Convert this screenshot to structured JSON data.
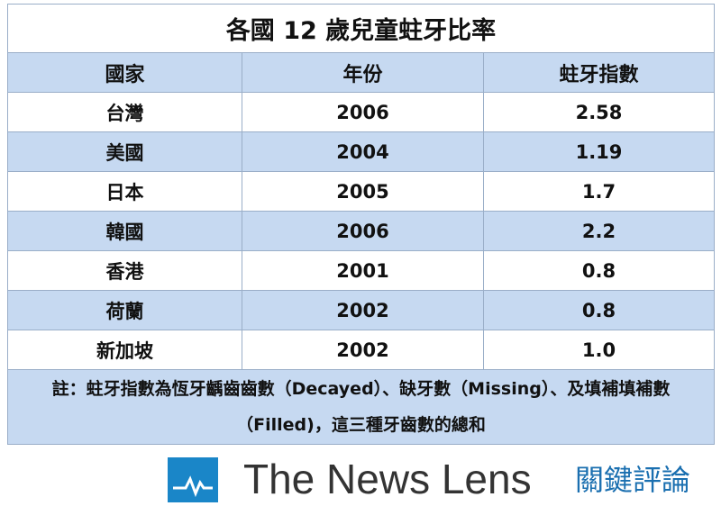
{
  "header": {
    "title": "各國 12 歲兒童蛀牙比率"
  },
  "table": {
    "columns": [
      "國家",
      "年份",
      "蛀牙指數"
    ],
    "rows": [
      [
        "台灣",
        "2006",
        "2.58"
      ],
      [
        "美國",
        "2004",
        "1.19"
      ],
      [
        "日本",
        "2005",
        "1.7"
      ],
      [
        "韓國",
        "2006",
        "2.2"
      ],
      [
        "香港",
        "2001",
        "0.8"
      ],
      [
        "荷蘭",
        "2002",
        "0.8"
      ],
      [
        "新加坡",
        "2002",
        "1.0"
      ]
    ]
  },
  "note": "註：蛀牙指數為恆牙齲齒齒數（Decayed）、缺牙數（Missing）、及填補填補數（Filled)，這三種牙齒數的總和",
  "logo": {
    "name": "The News Lens",
    "chinese": "關鍵評論"
  }
}
